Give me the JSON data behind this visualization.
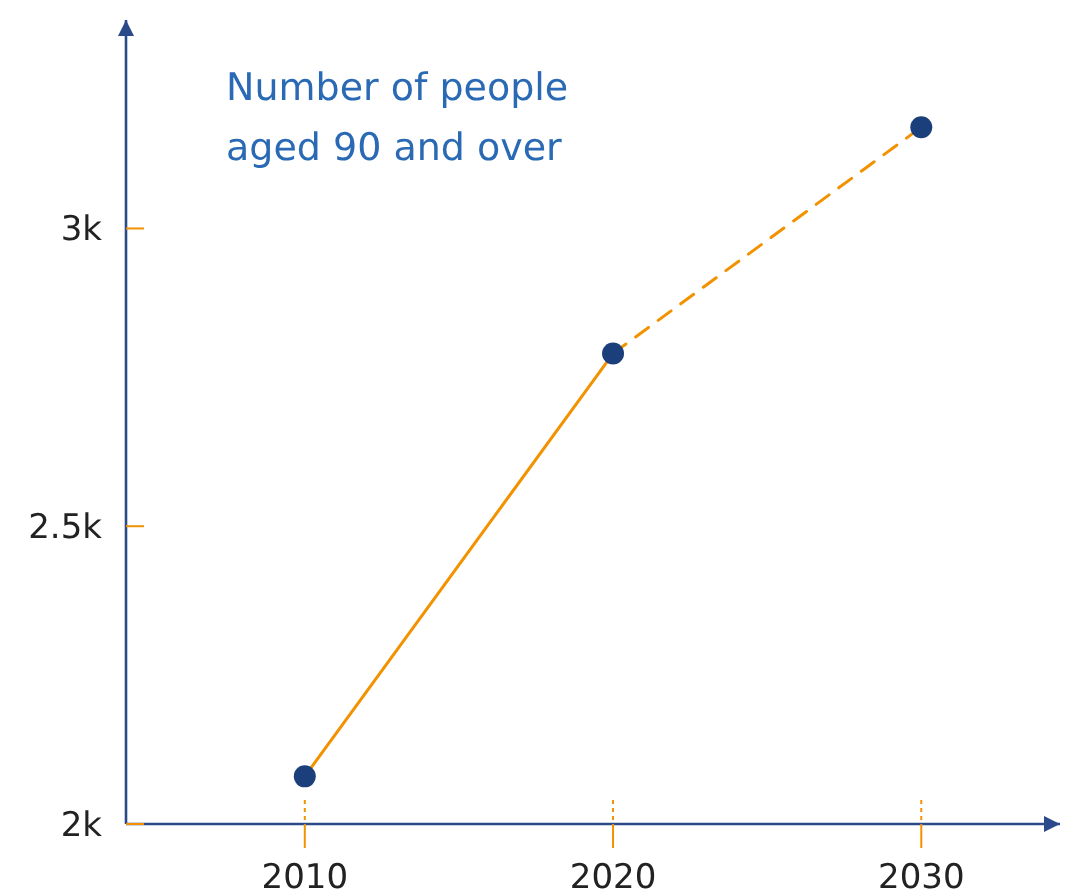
{
  "chart_data": {
    "type": "line",
    "title": "Number of people aged 90 and over",
    "x": [
      2010,
      2020,
      2030
    ],
    "xlim": [
      2004.2,
      2034.5
    ],
    "xticks": [
      2010,
      2020,
      2030
    ],
    "ylim": [
      2000,
      3350
    ],
    "yticks": [
      {
        "value": 2000,
        "label": "2k"
      },
      {
        "value": 2500,
        "label": "2.5k"
      },
      {
        "value": 3000,
        "label": "3k"
      }
    ],
    "grid": false,
    "series": [
      {
        "color": "#f39200",
        "line_style": "solid",
        "marker": "none",
        "values": [
          2080,
          2790,
          null
        ]
      },
      {
        "color": "#f39200",
        "line_style": "dashed",
        "marker": "none",
        "values": [
          null,
          2790,
          3170
        ]
      },
      {
        "type": "scatter",
        "color": "#1b3f7a",
        "marker": "circle",
        "values": [
          2080,
          2790,
          3170
        ]
      }
    ]
  }
}
